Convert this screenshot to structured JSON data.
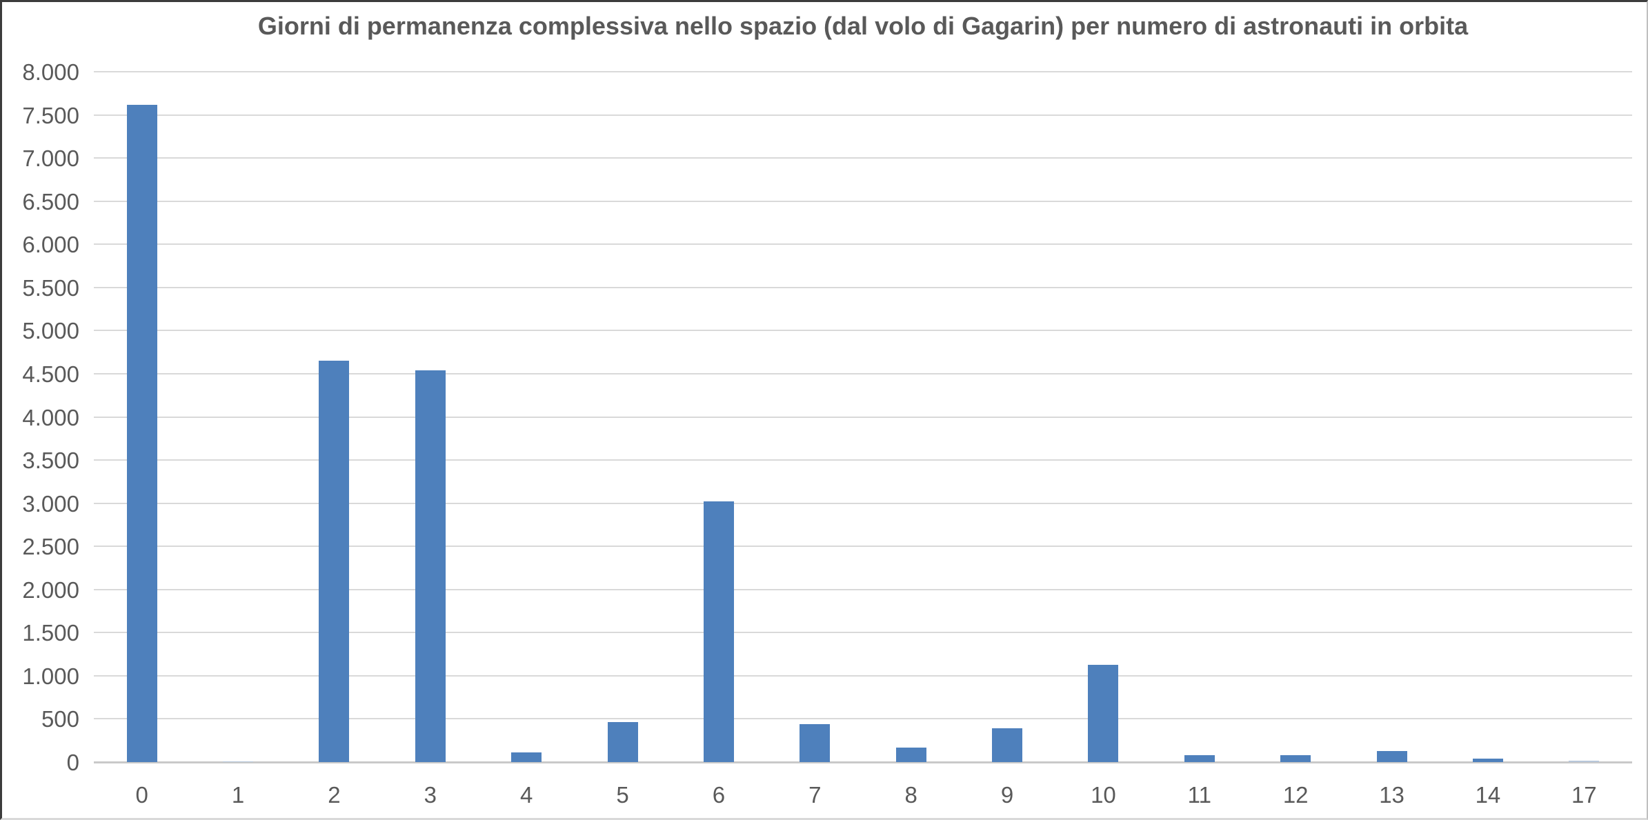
{
  "chart_data": {
    "type": "bar",
    "title": "Giorni di permanenza complessiva nello spazio (dal volo di Gagarin) per numero di astronauti in orbita",
    "categories": [
      "0",
      "1",
      "2",
      "3",
      "4",
      "5",
      "6",
      "7",
      "8",
      "9",
      "10",
      "11",
      "12",
      "13",
      "14",
      "17"
    ],
    "values": [
      7620,
      8,
      4650,
      4540,
      110,
      460,
      3020,
      440,
      170,
      395,
      1130,
      80,
      80,
      130,
      40,
      15
    ],
    "xlabel": "",
    "ylabel": "",
    "ylim": [
      0,
      8000
    ],
    "ytick_step": 500,
    "ytick_labels": [
      "0",
      "500",
      "1.000",
      "1.500",
      "2.000",
      "2.500",
      "3.000",
      "3.500",
      "4.000",
      "4.500",
      "5.000",
      "5.500",
      "6.000",
      "6.500",
      "7.000",
      "7.500",
      "8.000"
    ],
    "grid": true,
    "legend": false,
    "colors": {
      "bar": "#4E80BC",
      "bar_faint": "#B7C7DA",
      "text": "#595959",
      "gridline": "#D9D9D9",
      "baseline": "#C9C9C9"
    }
  }
}
